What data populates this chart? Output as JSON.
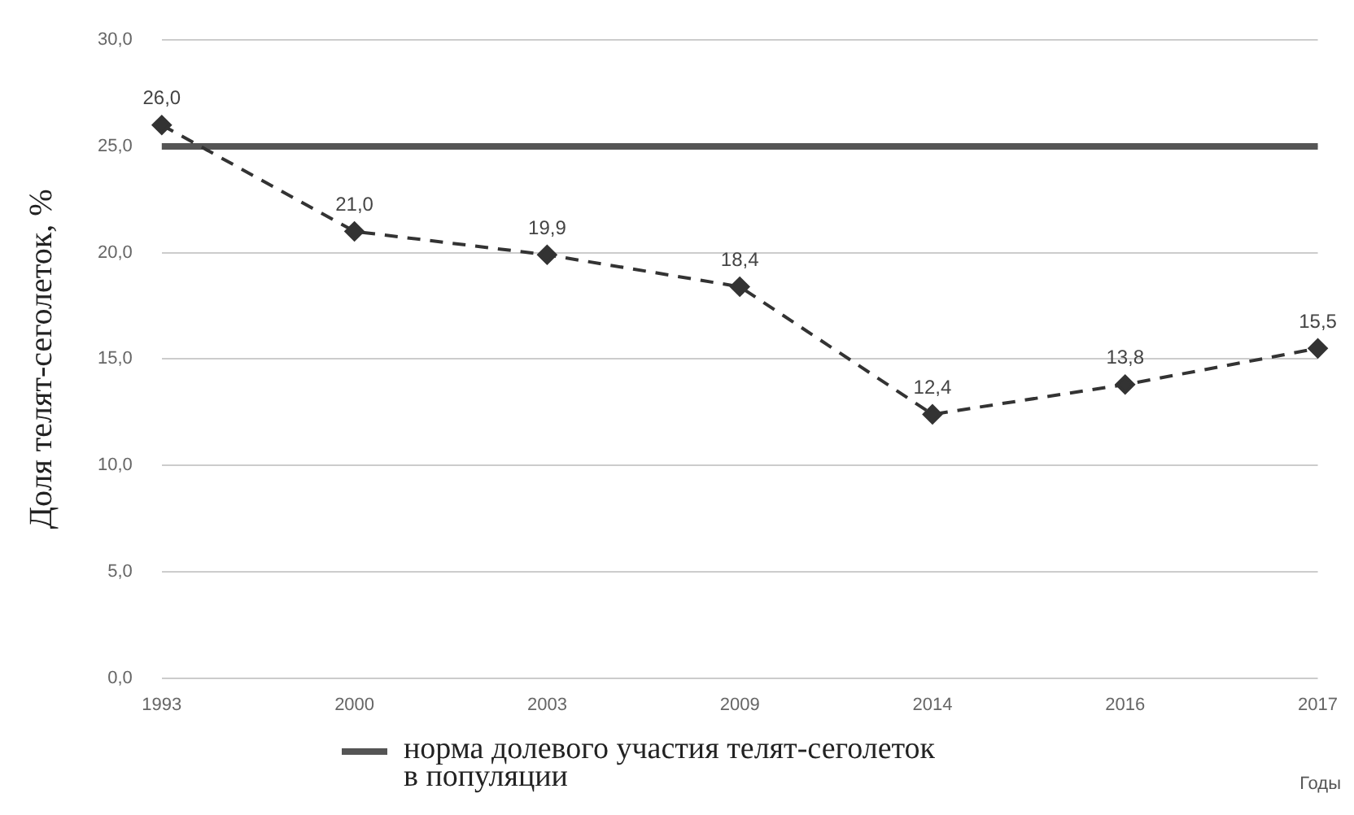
{
  "chart_data": {
    "type": "line",
    "ylabel": "Доля телят-сеголеток, %",
    "xlabel": "Годы",
    "categories": [
      "1993",
      "2000",
      "2003",
      "2009",
      "2014",
      "2016",
      "2017"
    ],
    "series": [
      {
        "color": "#333333",
        "line_style": "dashed",
        "marker": "diamond",
        "values": [
          26.0,
          21.0,
          19.9,
          18.4,
          12.4,
          13.8,
          15.5
        ],
        "value_labels": [
          "26,0",
          "21,0",
          "19,9",
          "18,4",
          "12,4",
          "13,8",
          "15,5"
        ]
      },
      {
        "name": "норма долевого участия телят-сеголеток в популяции",
        "color": "#555555",
        "line_style": "solid",
        "marker": "none",
        "values": [
          25,
          25,
          25,
          25,
          25,
          25,
          25
        ]
      }
    ],
    "ylim": [
      0,
      30
    ],
    "yticks": [
      {
        "value": 0,
        "label": "0,0"
      },
      {
        "value": 5,
        "label": "5,0"
      },
      {
        "value": 10,
        "label": "10,0"
      },
      {
        "value": 15,
        "label": "15,0"
      },
      {
        "value": 20,
        "label": "20,0"
      },
      {
        "value": 25,
        "label": "25,0"
      },
      {
        "value": 30,
        "label": "30,0"
      }
    ],
    "grid": "y",
    "legend": "bottom"
  }
}
